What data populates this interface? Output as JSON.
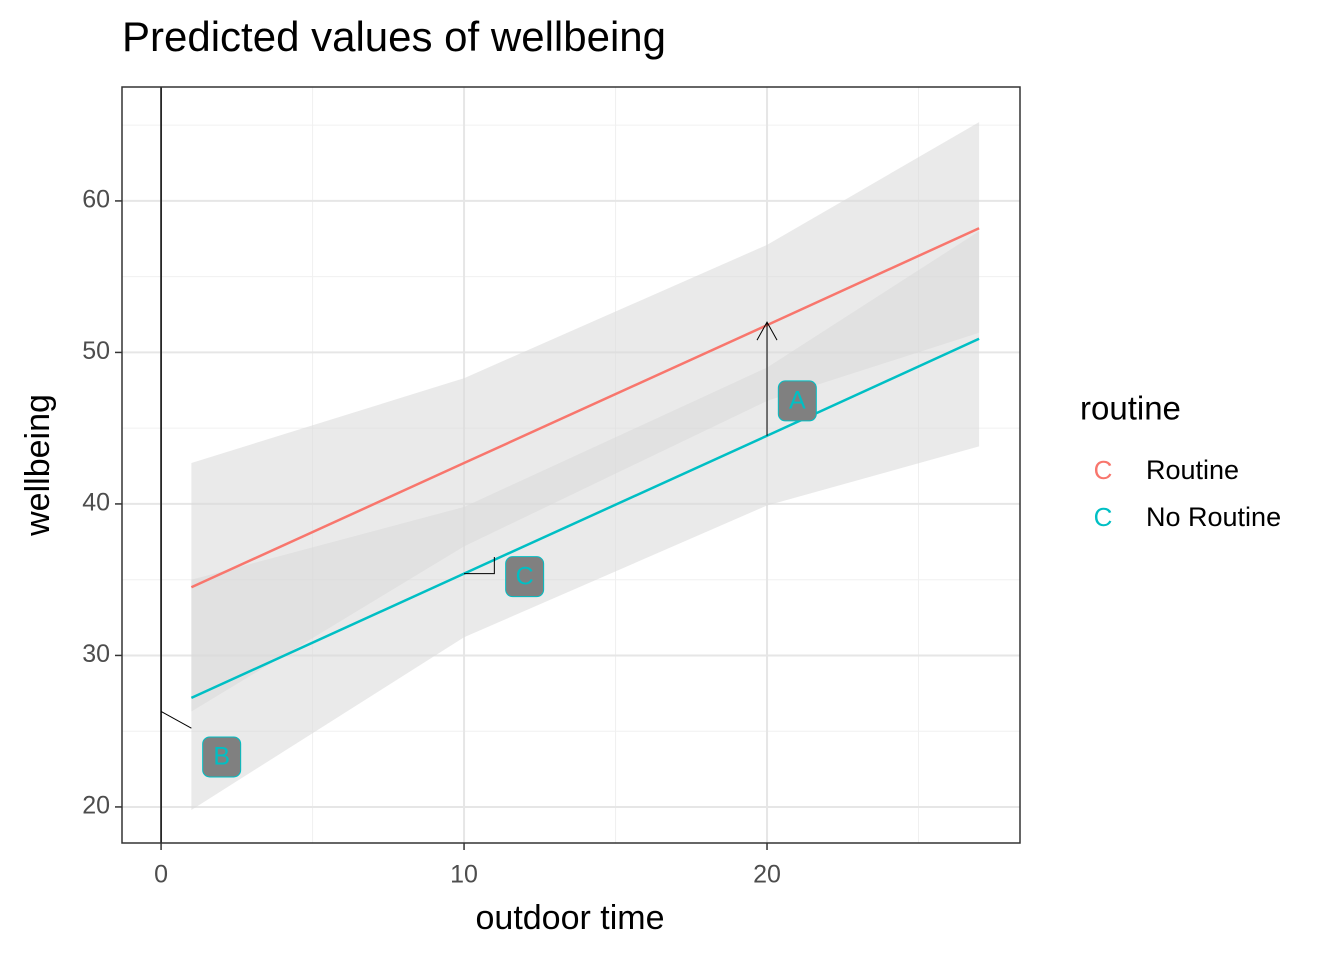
{
  "chart_data": {
    "type": "line",
    "title": "Predicted values of wellbeing",
    "x_label": "outdoor time",
    "y_label": "wellbeing",
    "legend_title": "routine",
    "legend_key": "C",
    "legend_position": "right",
    "grid": true,
    "xlim": [
      -1.29,
      28.35
    ],
    "ylim": [
      17.62,
      67.52
    ],
    "xticks": [
      0,
      10,
      20
    ],
    "yticks": [
      20,
      30,
      40,
      50,
      60
    ],
    "minor_xticks": [
      5,
      15,
      25
    ],
    "minor_yticks": [
      25,
      35,
      45,
      55,
      65
    ],
    "vline": 0,
    "x": [
      1,
      10,
      20,
      27
    ],
    "series": [
      {
        "name": "Routine",
        "color": "#f8766d",
        "values": [
          34.5,
          42.7,
          51.8,
          58.2
        ],
        "lower": [
          26.3,
          37.2,
          46.8,
          51.3
        ],
        "upper": [
          42.7,
          48.3,
          57.1,
          65.2
        ]
      },
      {
        "name": "No Routine",
        "color": "#00bfc4",
        "values": [
          27.2,
          35.4,
          44.5,
          50.9
        ],
        "lower": [
          19.8,
          31.2,
          39.9,
          43.8
        ],
        "upper": [
          35.0,
          39.8,
          49.0,
          58.0
        ]
      }
    ],
    "annotations": [
      {
        "label": "A",
        "x": 21,
        "y": 46.8,
        "arrow": true,
        "segment_x": [
          20,
          20
        ],
        "segment_y": [
          44.5,
          52
        ]
      },
      {
        "label": "B",
        "x": 2,
        "y": 23.3,
        "arrow": false,
        "segment_x": [
          0,
          1
        ],
        "segment_y": [
          26.3,
          25.2
        ]
      },
      {
        "label": "C",
        "x": 12,
        "y": 35.2,
        "arrow": false,
        "segment_x": [
          10,
          11,
          11
        ],
        "segment_y": [
          35.4,
          35.4,
          36.5
        ]
      }
    ]
  }
}
